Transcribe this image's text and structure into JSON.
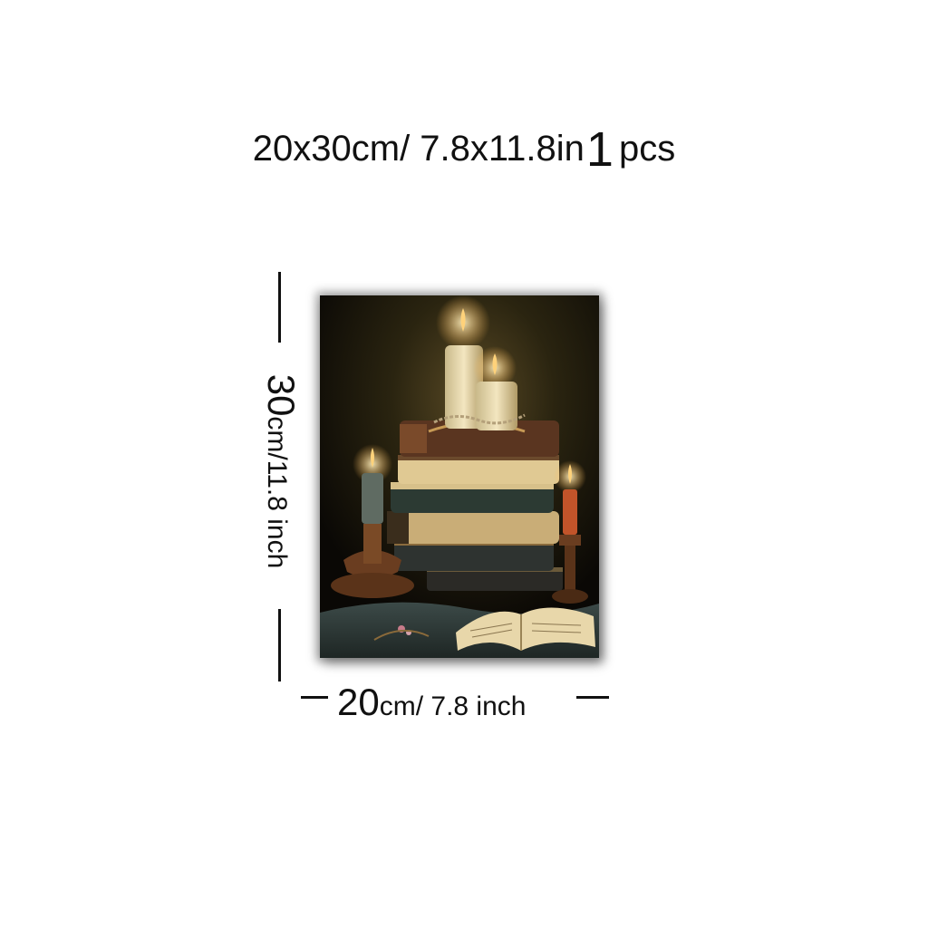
{
  "header": {
    "size_text": "20x30cm/ 7.8x11.8in",
    "quantity": "1",
    "quantity_unit": "pcs"
  },
  "dimensions": {
    "height_value": "30",
    "height_text": "cm/11.8 inch",
    "width_value": "20",
    "width_text": "cm/ 7.8 inch"
  },
  "colors": {
    "background": "#ffffff",
    "text": "#111111",
    "canvas_dark": "#0d0a06",
    "flame": "#ffd27a"
  }
}
